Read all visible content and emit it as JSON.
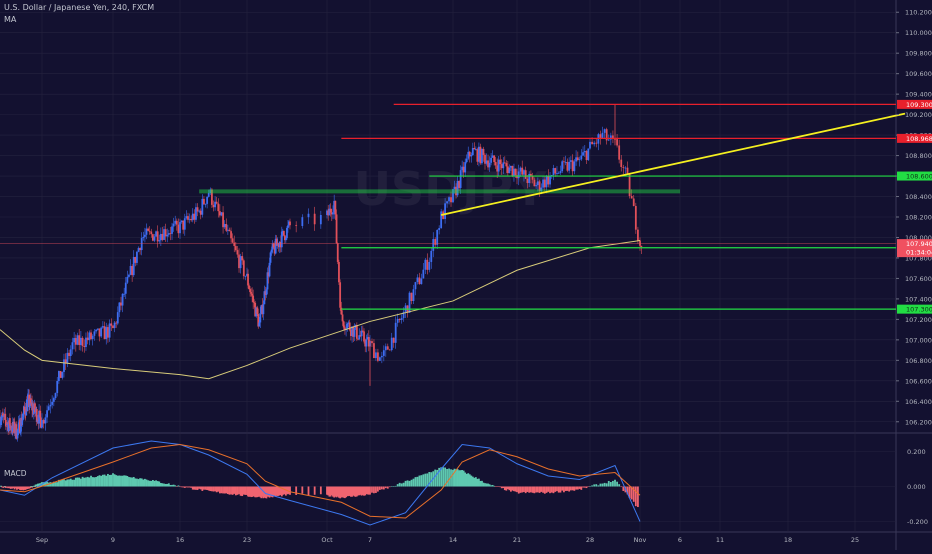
{
  "header": {
    "title": "U.S. Dollar / Japanese Yen, 240, FXCM",
    "indicator": "MA",
    "macd_label": "MACD"
  },
  "watermark": "USDJPY",
  "colors": {
    "background": "#131130",
    "grid": "#25233f",
    "bull": "#3d6df2",
    "bear": "#e0505a",
    "resistance": "#e8202c",
    "support": "#22dd44",
    "trendline": "#f5f020",
    "ma": "#d8cc7a",
    "current": "#f05060",
    "macd_line": "#3c78f0",
    "signal_line": "#e8702a",
    "hist_pos": "#5ec9b0",
    "hist_neg": "#f06470"
  },
  "chart_data": [
    {
      "type": "candlestick",
      "symbol": "USDJPY",
      "ylim": [
        106.1,
        110.3
      ],
      "yticks": [
        "110.200",
        "110.000",
        "109.800",
        "109.600",
        "109.400",
        "109.200",
        "109.000",
        "108.800",
        "108.600",
        "108.400",
        "108.200",
        "108.000",
        "107.800",
        "107.600",
        "107.400",
        "107.200",
        "107.000",
        "106.800",
        "106.600",
        "106.400",
        "106.200"
      ],
      "xticks": [
        "Sep",
        "9",
        "16",
        "23",
        "Oct",
        "7",
        "14",
        "21",
        "28",
        "Nov",
        "6",
        "11",
        "18",
        "25"
      ],
      "horizontal_levels": [
        {
          "price": 109.3,
          "label": "109.300",
          "color": "resistance",
          "from": "Oct 9"
        },
        {
          "price": 108.968,
          "label": "108.968",
          "color": "resistance",
          "from": "Oct 3"
        },
        {
          "price": 108.6,
          "label": "108.600",
          "color": "support",
          "from": "Oct 12"
        },
        {
          "price": 107.9,
          "label": "107.900",
          "color": "support",
          "from": "Oct 3"
        },
        {
          "price": 107.3,
          "label": "107.300",
          "color": "support",
          "from": "Oct 3"
        },
        {
          "price": 108.45,
          "label": "",
          "color": "support",
          "from": "Sep 18",
          "to": "Nov 6",
          "thick": true
        }
      ],
      "trendline": {
        "from": [
          "Oct 13",
          108.22
        ],
        "to": [
          "Nov 30",
          109.21
        ]
      },
      "current_price": {
        "price": 107.94,
        "label": "107.940",
        "countdown": "01:34:04"
      },
      "moving_average": [
        {
          "x": "Aug 21",
          "y": 107.1
        },
        {
          "x": "Aug 28",
          "y": 106.9
        },
        {
          "x": "Sep 2",
          "y": 106.8
        },
        {
          "x": "Sep 9",
          "y": 106.72
        },
        {
          "x": "Sep 16",
          "y": 106.66
        },
        {
          "x": "Sep 19",
          "y": 106.62
        },
        {
          "x": "Sep 23",
          "y": 106.75
        },
        {
          "x": "Sep 30",
          "y": 106.92
        },
        {
          "x": "Oct 7",
          "y": 107.18
        },
        {
          "x": "Oct 14",
          "y": 107.38
        },
        {
          "x": "Oct 21",
          "y": 107.68
        },
        {
          "x": "Oct 28",
          "y": 107.9
        },
        {
          "x": "Nov 1",
          "y": 107.97
        }
      ],
      "price_path": [
        {
          "x": "Aug 21",
          "y": 106.25
        },
        {
          "x": "Aug 26",
          "y": 106.1
        },
        {
          "x": "Aug 29",
          "y": 106.4
        },
        {
          "x": "Sep 2",
          "y": 106.2
        },
        {
          "x": "Sep 5",
          "y": 106.95
        },
        {
          "x": "Sep 9",
          "y": 107.1
        },
        {
          "x": "Sep 12",
          "y": 108.0
        },
        {
          "x": "Sep 16",
          "y": 108.1
        },
        {
          "x": "Sep 18",
          "y": 108.25
        },
        {
          "x": "Sep 19",
          "y": 108.45
        },
        {
          "x": "Sep 23",
          "y": 107.6
        },
        {
          "x": "Sep 25",
          "y": 107.15
        },
        {
          "x": "Sep 27",
          "y": 107.85
        },
        {
          "x": "Oct 1",
          "y": 108.2
        },
        {
          "x": "Oct 2",
          "y": 108.35
        },
        {
          "x": "Oct 3",
          "y": 107.2
        },
        {
          "x": "Oct 7",
          "y": 106.95
        },
        {
          "x": "Oct 8",
          "y": 106.8
        },
        {
          "x": "Oct 10",
          "y": 107.3
        },
        {
          "x": "Oct 12",
          "y": 107.8
        },
        {
          "x": "Oct 13",
          "y": 108.2
        },
        {
          "x": "Oct 14",
          "y": 108.4
        },
        {
          "x": "Oct 16",
          "y": 108.85
        },
        {
          "x": "Oct 18",
          "y": 108.75
        },
        {
          "x": "Oct 21",
          "y": 108.65
        },
        {
          "x": "Oct 23",
          "y": 108.5
        },
        {
          "x": "Oct 25",
          "y": 108.65
        },
        {
          "x": "Oct 27",
          "y": 108.75
        },
        {
          "x": "Oct 29",
          "y": 109.0
        },
        {
          "x": "Oct 30",
          "y": 108.9
        },
        {
          "x": "Oct 31",
          "y": 108.55
        },
        {
          "x": "Nov 1",
          "y": 107.95
        }
      ],
      "spikes": [
        {
          "x": "Oct 30",
          "high": 109.3
        },
        {
          "x": "Oct 7",
          "low": 106.55
        }
      ]
    },
    {
      "type": "macd",
      "name": "MACD",
      "ylim": [
        -0.26,
        0.3
      ],
      "yticks": [
        "0.200",
        "0.000",
        "-0.200"
      ],
      "macd": [
        {
          "x": "Aug 21",
          "y": -0.02
        },
        {
          "x": "Aug 28",
          "y": -0.05
        },
        {
          "x": "Sep 3",
          "y": 0.05
        },
        {
          "x": "Sep 9",
          "y": 0.22
        },
        {
          "x": "Sep 13",
          "y": 0.26
        },
        {
          "x": "Sep 16",
          "y": 0.24
        },
        {
          "x": "Sep 19",
          "y": 0.18
        },
        {
          "x": "Sep 23",
          "y": 0.07
        },
        {
          "x": "Sep 26",
          "y": -0.04
        },
        {
          "x": "Sep 30",
          "y": -0.08
        },
        {
          "x": "Oct 3",
          "y": -0.16
        },
        {
          "x": "Oct 7",
          "y": -0.22
        },
        {
          "x": "Oct 10",
          "y": -0.15
        },
        {
          "x": "Oct 13",
          "y": 0.1
        },
        {
          "x": "Oct 15",
          "y": 0.24
        },
        {
          "x": "Oct 18",
          "y": 0.22
        },
        {
          "x": "Oct 21",
          "y": 0.13
        },
        {
          "x": "Oct 24",
          "y": 0.06
        },
        {
          "x": "Oct 27",
          "y": 0.04
        },
        {
          "x": "Oct 30",
          "y": 0.12
        },
        {
          "x": "Nov 1",
          "y": -0.2
        }
      ],
      "signal": [
        {
          "x": "Aug 21",
          "y": -0.02
        },
        {
          "x": "Aug 28",
          "y": -0.03
        },
        {
          "x": "Sep 3",
          "y": 0.02
        },
        {
          "x": "Sep 9",
          "y": 0.14
        },
        {
          "x": "Sep 13",
          "y": 0.22
        },
        {
          "x": "Sep 16",
          "y": 0.24
        },
        {
          "x": "Sep 19",
          "y": 0.21
        },
        {
          "x": "Sep 23",
          "y": 0.13
        },
        {
          "x": "Sep 26",
          "y": 0.03
        },
        {
          "x": "Sep 30",
          "y": -0.03
        },
        {
          "x": "Oct 3",
          "y": -0.09
        },
        {
          "x": "Oct 7",
          "y": -0.17
        },
        {
          "x": "Oct 10",
          "y": -0.18
        },
        {
          "x": "Oct 13",
          "y": -0.02
        },
        {
          "x": "Oct 15",
          "y": 0.14
        },
        {
          "x": "Oct 18",
          "y": 0.21
        },
        {
          "x": "Oct 21",
          "y": 0.17
        },
        {
          "x": "Oct 24",
          "y": 0.1
        },
        {
          "x": "Oct 27",
          "y": 0.06
        },
        {
          "x": "Oct 30",
          "y": 0.08
        },
        {
          "x": "Nov 1",
          "y": -0.05
        }
      ]
    }
  ]
}
